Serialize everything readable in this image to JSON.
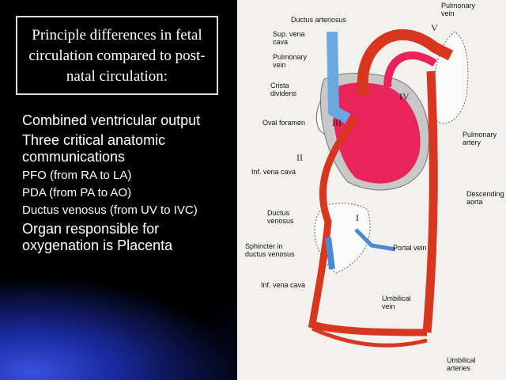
{
  "title": "Principle differences in fetal circulation compared to post-natal circulation:",
  "bullets": [
    "Combined ventricular output",
    "Three critical anatomic communications",
    "PFO (from RA to LA)",
    "PDA (from PA to AO)",
    "Ductus venosus (from UV to IVC)",
    "Organ responsible for oxygenation is Placenta"
  ],
  "diagram": {
    "labels": [
      "Pulmonary vein",
      "Ductus arteriosus",
      "Sup. vena cava",
      "Pulmonary vein",
      "Crista dividens",
      "Oval foramen",
      "Pulmonary artery",
      "Inf. vena cava",
      "Descending aorta",
      "Ductus venosus",
      "Sphincter in ductus venosus",
      "Portal vein",
      "Inf. vena cava",
      "Umbilical vein",
      "Umbilical arteries"
    ],
    "numerals": [
      "V",
      "IV",
      "III",
      "II",
      "I"
    ]
  }
}
